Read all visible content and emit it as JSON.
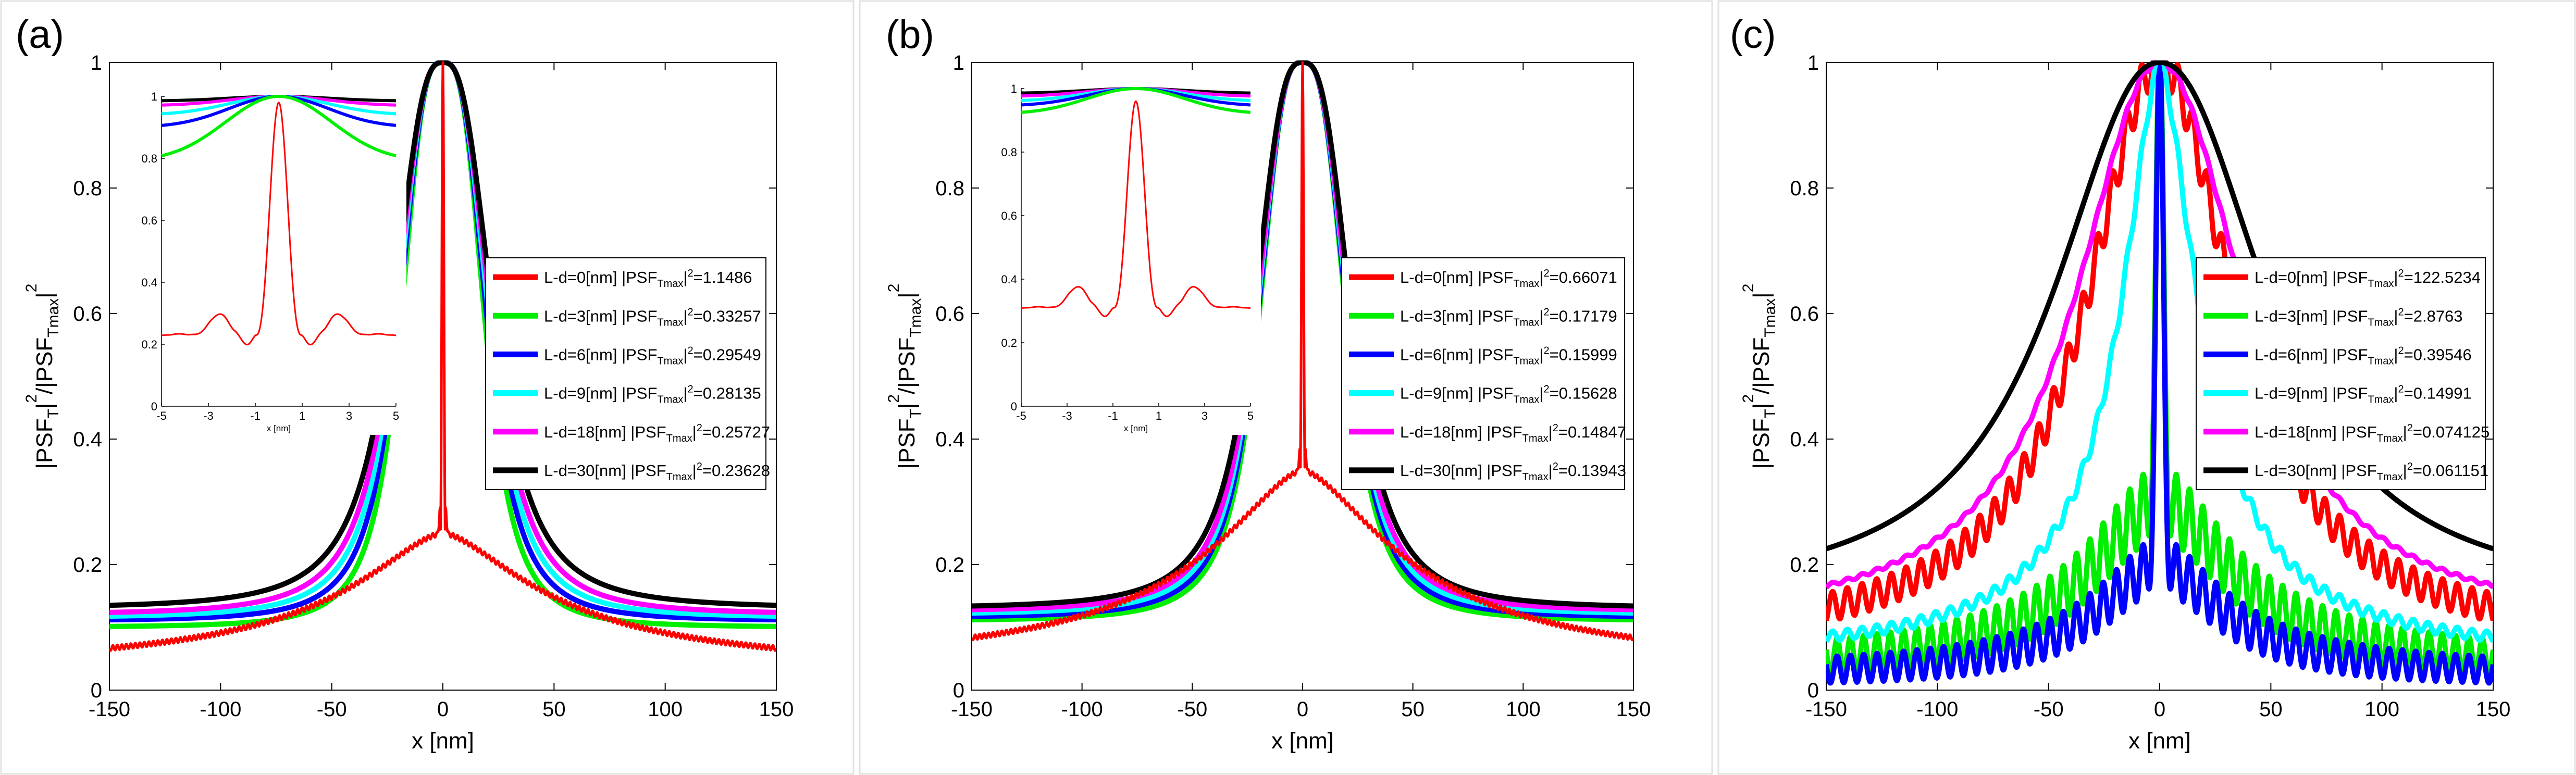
{
  "panels": [
    {
      "label": "(a)",
      "chart_data": {
        "type": "line",
        "xlabel": "x [nm]",
        "ylabel_parts": {
          "a": "|PSF",
          "b": "T",
          "c": "|",
          "d": "2",
          "e": "/|PSF",
          "f": "Tmax",
          "g": "|",
          "h": "2"
        },
        "xlim": [
          -150,
          150
        ],
        "ylim": [
          0,
          1
        ],
        "xticks": [
          "-150",
          "-100",
          "-50",
          "0",
          "50",
          "100",
          "150"
        ],
        "yticks": [
          "0",
          "0.2",
          "0.4",
          "0.6",
          "0.8",
          "1"
        ],
        "series": [
          {
            "name": "L-d=0[nm]",
            "value": "1.1486",
            "color": "#ff0000",
            "form": "spike",
            "edge": 0.03,
            "shape": 55,
            "p": 0.8,
            "peak": 1.0,
            "inner": 0.25,
            "ripple": 0.004
          },
          {
            "name": "L-d=3[nm]",
            "value": "0.33257",
            "color": "#00ee00",
            "form": "smooth",
            "edge": 0.1,
            "shape": 20,
            "p": 1.6
          },
          {
            "name": "L-d=6[nm]",
            "value": "0.29549",
            "color": "#0000ff",
            "form": "smooth",
            "edge": 0.11,
            "shape": 21,
            "p": 1.55
          },
          {
            "name": "L-d=9[nm]",
            "value": "0.28135",
            "color": "#00ffff",
            "form": "smooth",
            "edge": 0.115,
            "shape": 22,
            "p": 1.5
          },
          {
            "name": "L-d=18[nm]",
            "value": "0.25727",
            "color": "#ff00ff",
            "form": "smooth",
            "edge": 0.12,
            "shape": 23,
            "p": 1.45
          },
          {
            "name": "L-d=30[nm]",
            "value": "0.23628",
            "color": "#000000",
            "form": "smooth",
            "edge": 0.13,
            "shape": 24,
            "p": 1.4
          }
        ],
        "legend_placement": "center-right",
        "inset": {
          "xlim": [
            -5,
            5
          ],
          "ylim": [
            0,
            1
          ],
          "xticks": [
            "-5",
            "-3",
            "-1",
            "1",
            "3",
            "5"
          ],
          "yticks": [
            "0",
            "0.2",
            "0.4",
            "0.6",
            "0.8",
            "1"
          ],
          "xlabel": "x [nm]",
          "series": [
            {
              "color": "#ff0000",
              "form": "sinc",
              "base": 0.23,
              "amp": 0.75,
              "w": 0.95
            },
            {
              "color": "#00ee00",
              "form": "gauss",
              "base": 0.79,
              "amp": 0.21,
              "w": 3.2
            },
            {
              "color": "#0000ff",
              "form": "gauss",
              "base": 0.9,
              "amp": 0.1,
              "w": 3.0
            },
            {
              "color": "#00ffff",
              "form": "gauss",
              "base": 0.94,
              "amp": 0.06,
              "w": 3.0
            },
            {
              "color": "#ff00ff",
              "form": "gauss",
              "base": 0.97,
              "amp": 0.03,
              "w": 3.0
            },
            {
              "color": "#000000",
              "form": "gauss",
              "base": 0.985,
              "amp": 0.015,
              "w": 3.0
            }
          ]
        }
      }
    },
    {
      "label": "(b)",
      "chart_data": {
        "type": "line",
        "xlabel": "x [nm]",
        "ylabel_parts": {
          "a": "|PSF",
          "b": "T",
          "c": "|",
          "d": "2",
          "e": "/|PSF",
          "f": "Tmax",
          "g": "|",
          "h": "2"
        },
        "xlim": [
          -150,
          150
        ],
        "ylim": [
          0,
          1
        ],
        "xticks": [
          "-150",
          "-100",
          "-50",
          "0",
          "50",
          "100",
          "150"
        ],
        "yticks": [
          "0",
          "0.2",
          "0.4",
          "0.6",
          "0.8",
          "1"
        ],
        "series": [
          {
            "name": "L-d=0[nm]",
            "value": "0.66071",
            "color": "#ff0000",
            "form": "spike",
            "edge": 0.03,
            "shape": 55,
            "p": 0.8,
            "peak": 1.0,
            "inner": 0.35,
            "ripple": 0.004
          },
          {
            "name": "L-d=3[nm]",
            "value": "0.17179",
            "color": "#00ee00",
            "form": "smooth",
            "edge": 0.11,
            "shape": 21,
            "p": 1.55
          },
          {
            "name": "L-d=6[nm]",
            "value": "0.15999",
            "color": "#0000ff",
            "form": "smooth",
            "edge": 0.115,
            "shape": 21.5,
            "p": 1.52
          },
          {
            "name": "L-d=9[nm]",
            "value": "0.15628",
            "color": "#00ffff",
            "form": "smooth",
            "edge": 0.12,
            "shape": 22,
            "p": 1.5
          },
          {
            "name": "L-d=18[nm]",
            "value": "0.14847",
            "color": "#ff00ff",
            "form": "smooth",
            "edge": 0.125,
            "shape": 22.5,
            "p": 1.48
          },
          {
            "name": "L-d=30[nm]",
            "value": "0.13943",
            "color": "#000000",
            "form": "smooth",
            "edge": 0.13,
            "shape": 23.5,
            "p": 1.45
          }
        ],
        "legend_placement": "center-right",
        "inset": {
          "xlim": [
            -5,
            5
          ],
          "ylim": [
            0,
            1
          ],
          "xticks": [
            "-5",
            "-3",
            "-1",
            "1",
            "3",
            "5"
          ],
          "yticks": [
            "0",
            "0.2",
            "0.4",
            "0.6",
            "0.8",
            "1"
          ],
          "xlabel": "x [nm]",
          "series": [
            {
              "color": "#ff0000",
              "form": "sinc",
              "base": 0.31,
              "amp": 0.65,
              "w": 0.95
            },
            {
              "color": "#00ee00",
              "form": "gauss",
              "base": 0.92,
              "amp": 0.08,
              "w": 3.0
            },
            {
              "color": "#0000ff",
              "form": "gauss",
              "base": 0.945,
              "amp": 0.055,
              "w": 3.0
            },
            {
              "color": "#00ffff",
              "form": "gauss",
              "base": 0.96,
              "amp": 0.04,
              "w": 3.0
            },
            {
              "color": "#ff00ff",
              "form": "gauss",
              "base": 0.975,
              "amp": 0.025,
              "w": 3.0
            },
            {
              "color": "#000000",
              "form": "gauss",
              "base": 0.985,
              "amp": 0.015,
              "w": 3.0
            }
          ]
        }
      }
    },
    {
      "label": "(c)",
      "chart_data": {
        "type": "line",
        "xlabel": "x [nm]",
        "ylabel_parts": {
          "a": "|PSF",
          "b": "T",
          "c": "|",
          "d": "2",
          "e": "/|PSF",
          "f": "Tmax",
          "g": "|",
          "h": "2"
        },
        "xlim": [
          -150,
          150
        ],
        "ylim": [
          0,
          1
        ],
        "xticks": [
          "-150",
          "-100",
          "-50",
          "0",
          "50",
          "100",
          "150"
        ],
        "yticks": [
          "0",
          "0.2",
          "0.4",
          "0.6",
          "0.8",
          "1"
        ],
        "series": [
          {
            "name": "L-d=0[nm]",
            "value": "122.5234",
            "color": "#ff0000",
            "form": "osc",
            "edge": 0.07,
            "shape": 40,
            "p": 1.0,
            "osc": 0.035
          },
          {
            "name": "L-d=3[nm]",
            "value": "2.8763",
            "color": "#00ee00",
            "form": "spiky-osc",
            "edge": 0.03,
            "shape": 40,
            "p": 0.9,
            "osc": 0.06,
            "inner": 0.3
          },
          {
            "name": "L-d=6[nm]",
            "value": "0.39546",
            "color": "#0000ff",
            "form": "spiky-osc",
            "edge": 0.02,
            "shape": 35,
            "p": 0.9,
            "osc": 0.045,
            "inner": 0.2
          },
          {
            "name": "L-d=9[nm]",
            "value": "0.14991",
            "color": "#00ffff",
            "form": "osc",
            "edge": 0.05,
            "shape": 22,
            "p": 0.85,
            "osc": 0.012
          },
          {
            "name": "L-d=18[nm]",
            "value": "0.074125",
            "color": "#ff00ff",
            "form": "osc",
            "edge": 0.1,
            "shape": 45,
            "p": 1.05,
            "osc": 0.004
          },
          {
            "name": "L-d=30[nm]",
            "value": "0.061151",
            "color": "#000000",
            "form": "smooth",
            "edge": 0.14,
            "shape": 55,
            "p": 1.1
          }
        ],
        "legend_placement": "center-right"
      }
    }
  ]
}
